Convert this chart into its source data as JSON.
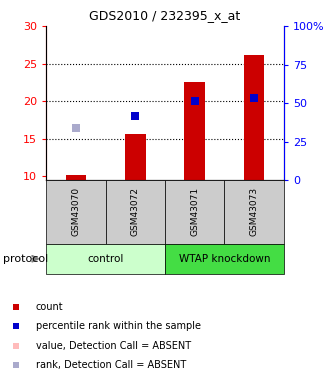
{
  "title": "GDS2010 / 232395_x_at",
  "samples": [
    "GSM43070",
    "GSM43072",
    "GSM43071",
    "GSM43073"
  ],
  "count_values": [
    10.15,
    15.6,
    22.6,
    26.1
  ],
  "rank_values": [
    16.5,
    18.0,
    20.1,
    20.5
  ],
  "absent_flags": [
    true,
    false,
    false,
    false
  ],
  "groups": [
    {
      "label": "control",
      "samples": [
        0,
        1
      ],
      "color": "#ccffcc"
    },
    {
      "label": "WTAP knockdown",
      "samples": [
        2,
        3
      ],
      "color": "#44dd44"
    }
  ],
  "ylim_left": [
    9.5,
    30
  ],
  "ylim_right": [
    0,
    100
  ],
  "yticks_left": [
    10,
    15,
    20,
    25,
    30
  ],
  "yticks_right": [
    0,
    25,
    50,
    75,
    100
  ],
  "ytick_labels_right": [
    "0",
    "25",
    "50",
    "75",
    "100%"
  ],
  "hgrid_lines": [
    15,
    20,
    25
  ],
  "bar_color": "#cc0000",
  "rank_color_present": "#0000cc",
  "rank_color_absent": "#aaaacc",
  "value_color_absent": "#ffbbbb",
  "bar_width": 0.35,
  "background_color": "#ffffff",
  "legend_items": [
    {
      "label": "count",
      "color": "#cc0000"
    },
    {
      "label": "percentile rank within the sample",
      "color": "#0000cc"
    },
    {
      "label": "value, Detection Call = ABSENT",
      "color": "#ffbbbb"
    },
    {
      "label": "rank, Detection Call = ABSENT",
      "color": "#aaaacc"
    }
  ]
}
